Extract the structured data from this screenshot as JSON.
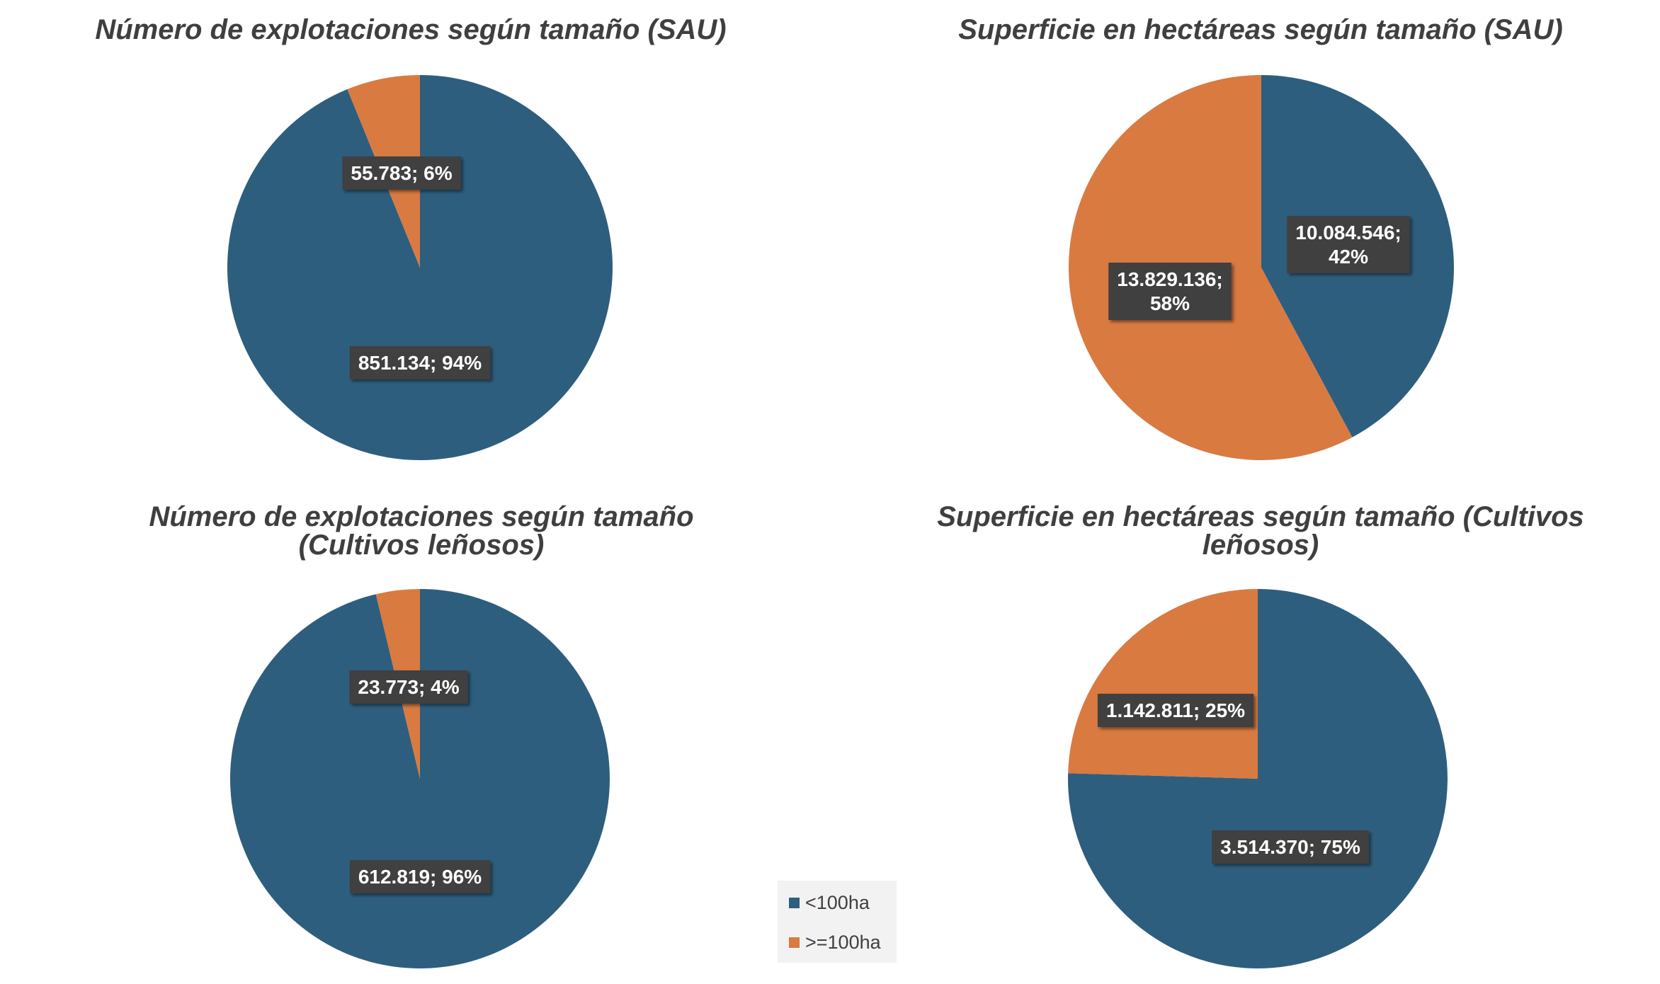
{
  "colors": {
    "lt100": "#2e5e7e",
    "ge100": "#d97a41",
    "label_bg": "#404040"
  },
  "legend": {
    "items": [
      {
        "label": "<100ha",
        "color": "#2e5e7e"
      },
      {
        "label": ">=100ha",
        "color": "#d97a41"
      }
    ]
  },
  "chart_data": [
    {
      "type": "pie",
      "title_lines": [
        "Número de explotaciones según tamaño (SAU)"
      ],
      "slices": [
        {
          "name": "<100ha",
          "value": 851134,
          "percent": 94,
          "label": "851.134; 94%",
          "color": "#2e5e7e"
        },
        {
          "name": ">=100ha",
          "value": 55783,
          "percent": 6,
          "label": "55.783; 6%",
          "color": "#d97a41"
        }
      ]
    },
    {
      "type": "pie",
      "title_lines": [
        "Superficie en hectáreas según tamaño (SAU)"
      ],
      "slices": [
        {
          "name": "<100ha",
          "value": 10084546,
          "percent": 42,
          "label": "10.084.546;\n42%",
          "color": "#2e5e7e"
        },
        {
          "name": ">=100ha",
          "value": 13829136,
          "percent": 58,
          "label": "13.829.136;\n58%",
          "color": "#d97a41"
        }
      ]
    },
    {
      "type": "pie",
      "title_lines": [
        "Número de explotaciones según tamaño",
        "(Cultivos leñosos)"
      ],
      "slices": [
        {
          "name": "<100ha",
          "value": 612819,
          "percent": 96,
          "label": "612.819; 96%",
          "color": "#2e5e7e"
        },
        {
          "name": ">=100ha",
          "value": 23773,
          "percent": 4,
          "label": "23.773; 4%",
          "color": "#d97a41"
        }
      ]
    },
    {
      "type": "pie",
      "title_lines": [
        "Superficie en hectáreas según tamaño (Cultivos",
        "leñosos)"
      ],
      "slices": [
        {
          "name": "<100ha",
          "value": 3514370,
          "percent": 75,
          "label": "3.514.370; 75%",
          "color": "#2e5e7e"
        },
        {
          "name": ">=100ha",
          "value": 1142811,
          "percent": 25,
          "label": "1.142.811; 25%",
          "color": "#d97a41"
        }
      ]
    }
  ]
}
